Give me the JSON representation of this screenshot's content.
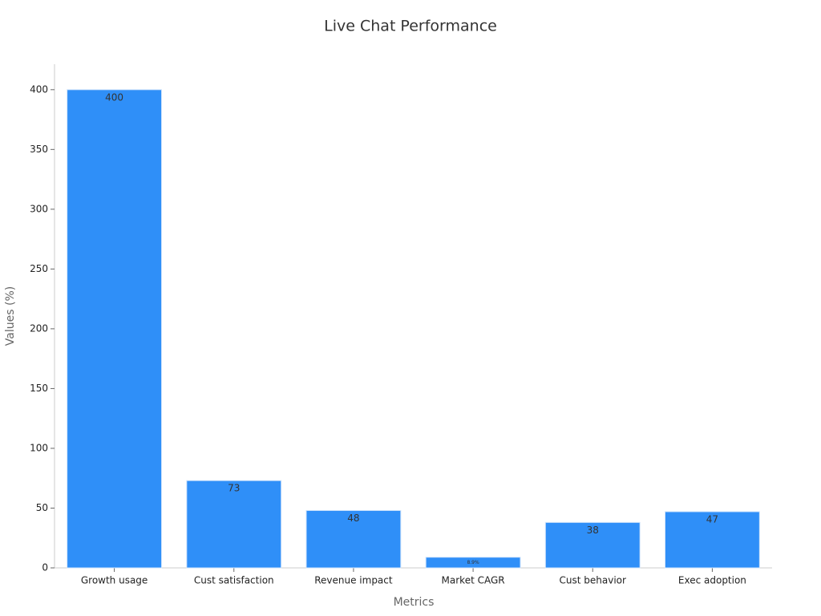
{
  "chart_data": {
    "type": "bar",
    "title": "Live Chat Performance",
    "x_label": "Metrics",
    "y_label": "Values (%)",
    "categories": [
      "Growth usage",
      "Cust satisfaction",
      "Revenue impact",
      "Market CAGR",
      "Cust behavior",
      "Exec adoption"
    ],
    "values": [
      400,
      73,
      48,
      8.9,
      38,
      47
    ],
    "value_labels": [
      "400",
      "73",
      "48",
      "8.9%",
      "38",
      "47"
    ],
    "color": "#2f8ff8",
    "ylim": [
      0,
      420
    ],
    "yticks": [
      0,
      50,
      100,
      150,
      200,
      250,
      300,
      350,
      400
    ],
    "grid": false
  }
}
